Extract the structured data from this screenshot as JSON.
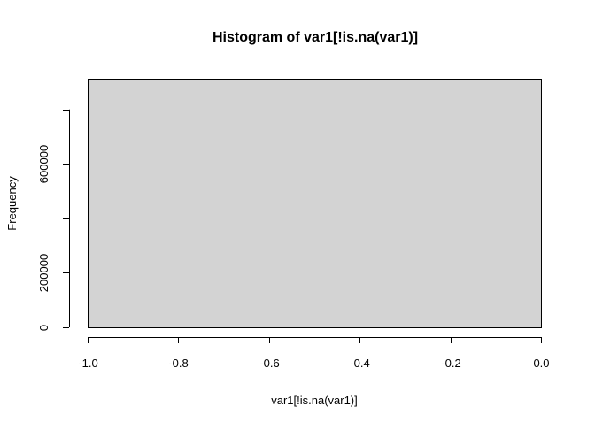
{
  "chart_data": {
    "type": "bar",
    "title": "Histogram of var1[!is.na(var1)]",
    "xlabel": "var1[!is.na(var1)]",
    "ylabel": "Frequency",
    "bins": [
      {
        "x0": -1.0,
        "x1": 0.0,
        "count": 913000
      }
    ],
    "xlim": [
      -1.0,
      0.0
    ],
    "ylim": [
      0,
      913000
    ],
    "x_ticks": [
      -1.0,
      -0.8,
      -0.6,
      -0.4,
      -0.2,
      0.0
    ],
    "x_tick_labels": [
      "-1.0",
      "-0.8",
      "-0.6",
      "-0.4",
      "-0.2",
      "0.0"
    ],
    "y_ticks": [
      0,
      200000,
      400000,
      600000,
      800000
    ],
    "y_tick_labels": [
      "0",
      "200000",
      "",
      "600000",
      ""
    ],
    "bar_fill": "#d3d3d3",
    "bar_stroke": "#000000",
    "grid": false,
    "legend": "none"
  }
}
